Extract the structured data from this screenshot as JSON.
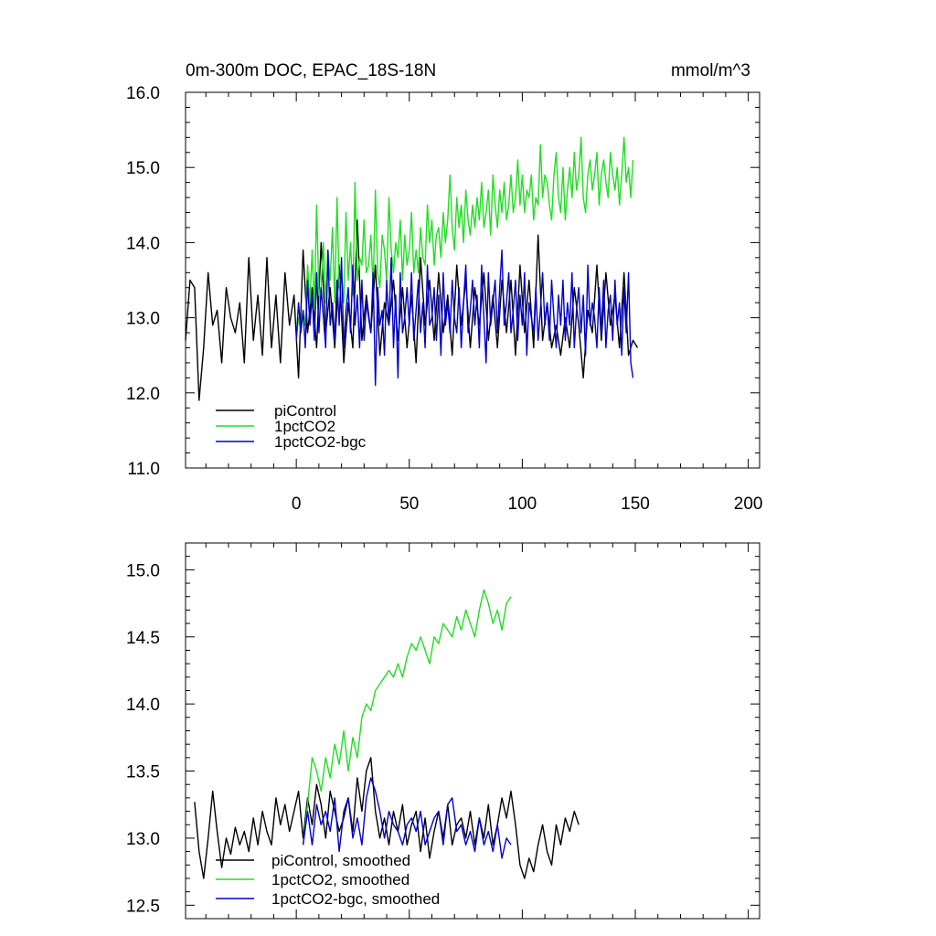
{
  "chart_data": [
    {
      "type": "line",
      "title": "0m-300m DOC, EPAC_18S-18N",
      "units": "mmol/m^3",
      "xlim": [
        -49,
        205
      ],
      "ylim": [
        11.0,
        16.0
      ],
      "x_ticks": [
        0,
        50,
        100,
        150,
        200
      ],
      "y_ticks": [
        11.0,
        12.0,
        13.0,
        14.0,
        15.0,
        16.0
      ],
      "y_tick_labels": [
        "11.0",
        "12.0",
        "13.0",
        "14.0",
        "15.0",
        "16.0"
      ],
      "legend_position": "bottom-left",
      "series": [
        {
          "name": "piControl",
          "color": "#000000",
          "x_start": -49,
          "x_step": 2,
          "values": [
            12.7,
            13.5,
            13.4,
            11.9,
            12.6,
            13.6,
            12.9,
            13.1,
            12.4,
            13.4,
            13.0,
            12.8,
            13.2,
            12.4,
            13.8,
            12.7,
            13.3,
            12.5,
            13.8,
            12.6,
            13.3,
            12.4,
            13.6,
            12.9,
            13.3,
            12.2,
            13.9,
            12.8,
            13.4,
            12.6,
            14.0,
            12.8,
            13.4,
            12.6,
            13.7,
            12.4,
            13.2,
            12.6,
            14.3,
            12.7,
            13.3,
            12.8,
            13.7,
            12.5,
            13.2,
            12.9,
            13.5,
            12.7,
            13.4,
            12.6,
            13.3,
            12.4,
            13.8,
            12.9,
            13.5,
            12.7,
            13.6,
            12.8,
            13.3,
            12.5,
            13.7,
            12.9,
            13.5,
            12.6,
            13.4,
            12.9,
            13.6,
            12.7,
            13.3,
            12.6,
            13.5,
            12.8,
            13.5,
            12.5,
            13.7,
            12.8,
            13.5,
            12.6,
            14.1,
            12.7,
            13.2,
            12.6,
            12.9,
            12.5,
            13.0,
            12.6,
            13.4,
            12.9,
            12.2,
            13.1,
            12.8,
            13.7,
            12.7,
            13.6,
            12.9,
            13.3,
            12.6,
            13.6,
            12.5,
            12.7,
            12.6
          ]
        },
        {
          "name": "1pctCO2",
          "color": "#22dd22",
          "x_start": 0,
          "x_step": 1,
          "values": [
            12.7,
            13.0,
            12.8,
            13.1,
            12.9,
            13.7,
            13.2,
            13.9,
            13.1,
            14.5,
            13.3,
            13.4,
            14.0,
            13.2,
            13.9,
            13.5,
            14.2,
            13.2,
            14.6,
            13.4,
            13.6,
            13.2,
            14.4,
            13.5,
            14.0,
            13.3,
            14.8,
            13.5,
            13.8,
            13.7,
            14.3,
            13.6,
            13.7,
            14.1,
            13.4,
            14.7,
            13.6,
            13.4,
            14.1,
            13.9,
            13.5,
            14.6,
            13.9,
            13.6,
            14.0,
            13.8,
            14.3,
            13.5,
            14.1,
            13.7,
            13.9,
            14.4,
            13.6,
            13.9,
            13.6,
            14.2,
            13.8,
            13.7,
            14.5,
            14.0,
            14.3,
            13.7,
            14.1,
            14.2,
            13.8,
            14.4,
            14.0,
            14.3,
            14.9,
            14.2,
            13.9,
            14.6,
            14.2,
            14.5,
            14.0,
            14.7,
            14.3,
            14.1,
            14.5,
            14.2,
            14.6,
            14.3,
            14.8,
            14.2,
            14.4,
            14.7,
            14.1,
            14.9,
            14.5,
            14.2,
            14.7,
            14.4,
            14.8,
            14.3,
            14.5,
            14.9,
            14.4,
            14.6,
            15.1,
            14.5,
            14.9,
            14.4,
            14.7,
            14.6,
            14.9,
            14.3,
            14.6,
            14.5,
            15.3,
            14.6,
            14.9,
            14.8,
            14.5,
            14.3,
            14.9,
            15.2,
            14.6,
            14.4,
            15.0,
            14.3,
            14.7,
            15.0,
            14.6,
            15.2,
            14.7,
            14.9,
            15.4,
            14.6,
            14.4,
            14.9,
            15.1,
            14.7,
            14.9,
            15.2,
            14.5,
            14.9,
            15.1,
            14.8,
            14.6,
            15.2,
            14.9,
            14.7,
            15.0,
            14.5,
            14.9,
            15.4,
            14.8,
            15.0,
            14.6,
            15.1
          ]
        },
        {
          "name": "1pctCO2-bgc",
          "color": "#0000cc",
          "x_start": 0,
          "x_step": 1,
          "values": [
            12.7,
            13.2,
            12.8,
            13.1,
            12.6,
            13.5,
            12.9,
            13.3,
            12.7,
            13.6,
            12.8,
            13.4,
            13.0,
            12.6,
            13.9,
            12.9,
            13.2,
            12.7,
            13.5,
            12.9,
            13.8,
            12.6,
            13.1,
            13.4,
            12.8,
            13.7,
            12.9,
            13.3,
            12.6,
            13.5,
            12.7,
            13.2,
            13.0,
            12.8,
            13.6,
            12.1,
            13.4,
            12.9,
            13.1,
            12.5,
            13.5,
            12.9,
            13.8,
            12.6,
            13.3,
            12.2,
            13.6,
            12.8,
            13.0,
            13.4,
            12.9,
            13.6,
            12.7,
            13.1,
            13.5,
            12.8,
            13.2,
            12.6,
            13.7,
            12.9,
            13.0,
            13.4,
            12.7,
            13.3,
            12.5,
            13.6,
            12.9,
            13.2,
            12.8,
            13.5,
            13.0,
            12.8,
            13.4,
            12.6,
            13.2,
            13.7,
            12.8,
            13.1,
            13.5,
            12.9,
            13.3,
            12.6,
            13.7,
            13.0,
            12.4,
            13.6,
            12.9,
            13.2,
            13.5,
            12.8,
            13.4,
            13.9,
            12.9,
            13.2,
            13.6,
            12.8,
            13.1,
            13.5,
            12.7,
            13.3,
            12.9,
            13.6,
            12.5,
            13.2,
            13.0,
            12.8,
            13.4,
            12.7,
            13.1,
            13.6,
            12.9,
            13.2,
            12.7,
            13.5,
            13.0,
            12.6,
            13.3,
            12.9,
            13.5,
            12.7,
            13.2,
            12.9,
            13.6,
            12.6,
            13.1,
            13.4,
            12.8,
            13.3,
            12.5,
            13.7,
            12.9,
            13.2,
            13.0,
            12.6,
            13.4,
            12.8,
            13.5,
            12.6,
            13.1,
            13.3,
            12.7,
            13.5,
            12.9,
            13.2,
            12.5,
            13.4,
            12.8,
            13.6,
            12.4,
            12.2
          ]
        }
      ]
    },
    {
      "type": "line",
      "xlim": [
        -49,
        205
      ],
      "ylim": [
        12.4,
        15.2
      ],
      "x_ticks": [
        0,
        50,
        100,
        150,
        200
      ],
      "y_ticks": [
        12.5,
        13.0,
        13.5,
        14.0,
        14.5,
        15.0
      ],
      "y_tick_labels": [
        "12.5",
        "13.0",
        "13.5",
        "14.0",
        "14.5",
        "15.0"
      ],
      "legend_position": "bottom-left",
      "series": [
        {
          "name": "piControl, smoothed",
          "color": "#000000",
          "x_start": -45,
          "x_step": 2,
          "values": [
            13.27,
            12.9,
            12.7,
            13.0,
            13.35,
            13.05,
            12.78,
            13.0,
            12.88,
            13.08,
            12.95,
            13.05,
            12.9,
            13.15,
            12.95,
            13.2,
            13.05,
            12.95,
            13.3,
            13.1,
            13.25,
            13.05,
            13.2,
            13.35,
            13.0,
            13.3,
            13.1,
            13.4,
            13.25,
            13.0,
            13.35,
            13.2,
            13.05,
            13.15,
            13.3,
            13.05,
            13.45,
            13.2,
            13.5,
            13.6,
            13.2,
            13.0,
            13.15,
            12.95,
            13.2,
            13.05,
            13.25,
            12.95,
            13.1,
            13.2,
            12.9,
            13.15,
            12.85,
            13.05,
            13.2,
            13.0,
            13.25,
            12.95,
            13.1,
            13.15,
            13.0,
            13.2,
            12.95,
            13.15,
            13.0,
            13.25,
            12.95,
            13.1,
            13.3,
            13.15,
            13.35,
            13.1,
            12.8,
            12.7,
            12.85,
            12.75,
            12.95,
            13.1,
            12.9,
            12.8,
            13.1,
            12.95,
            13.15,
            13.05,
            13.2,
            13.1
          ]
        },
        {
          "name": "1pctCO2, smoothed",
          "color": "#22dd22",
          "x_start": 3,
          "x_step": 2,
          "values": [
            12.95,
            13.25,
            13.6,
            13.5,
            13.35,
            13.6,
            13.45,
            13.7,
            13.55,
            13.8,
            13.5,
            13.75,
            13.6,
            13.9,
            14.0,
            13.95,
            14.1,
            14.15,
            14.2,
            14.25,
            14.2,
            14.3,
            14.2,
            14.35,
            14.45,
            14.4,
            14.5,
            14.4,
            14.3,
            14.5,
            14.45,
            14.6,
            14.55,
            14.5,
            14.65,
            14.55,
            14.7,
            14.6,
            14.5,
            14.7,
            14.85,
            14.75,
            14.6,
            14.7,
            14.55,
            14.75,
            14.8
          ]
        },
        {
          "name": "1pctCO2-bgc, smoothed",
          "color": "#0000cc",
          "x_start": 3,
          "x_step": 2,
          "values": [
            12.95,
            13.2,
            12.95,
            13.25,
            13.1,
            13.2,
            13.05,
            13.3,
            12.9,
            13.2,
            13.3,
            13.0,
            13.15,
            12.95,
            13.3,
            13.45,
            13.35,
            13.2,
            13.0,
            13.2,
            13.1,
            13.05,
            12.95,
            13.1,
            13.15,
            13.05,
            13.2,
            12.95,
            13.05,
            13.15,
            13.2,
            12.95,
            13.25,
            13.3,
            13.05,
            13.1,
            12.95,
            13.05,
            12.9,
            13.15,
            12.95,
            13.05,
            12.9,
            13.1,
            12.85,
            13.0,
            12.95
          ]
        }
      ]
    }
  ]
}
